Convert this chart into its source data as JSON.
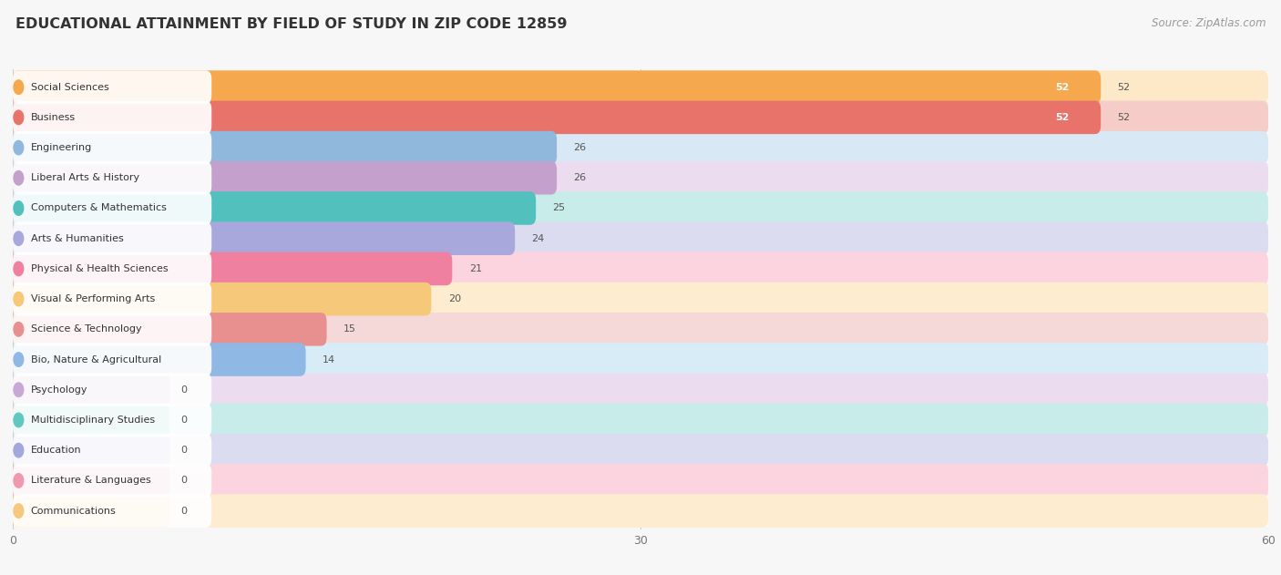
{
  "title": "EDUCATIONAL ATTAINMENT BY FIELD OF STUDY IN ZIP CODE 12859",
  "source": "Source: ZipAtlas.com",
  "categories": [
    "Social Sciences",
    "Business",
    "Engineering",
    "Liberal Arts & History",
    "Computers & Mathematics",
    "Arts & Humanities",
    "Physical & Health Sciences",
    "Visual & Performing Arts",
    "Science & Technology",
    "Bio, Nature & Agricultural",
    "Psychology",
    "Multidisciplinary Studies",
    "Education",
    "Literature & Languages",
    "Communications"
  ],
  "values": [
    52,
    52,
    26,
    26,
    25,
    24,
    21,
    20,
    15,
    14,
    0,
    0,
    0,
    0,
    0
  ],
  "bar_colors": [
    "#f5a84e",
    "#e8736a",
    "#90b8dc",
    "#c4a0cc",
    "#52c0bc",
    "#a8a8dc",
    "#f080a0",
    "#f5c87a",
    "#e89090",
    "#90b8e4",
    "#c8a8d4",
    "#60c8c0",
    "#a0a8dc",
    "#f098b0",
    "#f5c880"
  ],
  "bar_bg_colors": [
    "#fde8c8",
    "#f5ccc8",
    "#d8e8f5",
    "#ecdcf0",
    "#c8ecea",
    "#dcdcf0",
    "#fcd4e0",
    "#fdecd0",
    "#f5d8d8",
    "#d8ecf8",
    "#ecdcf0",
    "#c8ecea",
    "#dcdcf0",
    "#fcd4e0",
    "#fdecd0"
  ],
  "xlim": [
    0,
    60
  ],
  "xticks": [
    0,
    30,
    60
  ],
  "background_color": "#f7f7f7",
  "row_bg_colors": [
    "#ffffff",
    "#f2f2f2"
  ],
  "title_fontsize": 11.5,
  "source_fontsize": 8.5,
  "bar_height": 0.55,
  "zero_stub_val": 7.5
}
